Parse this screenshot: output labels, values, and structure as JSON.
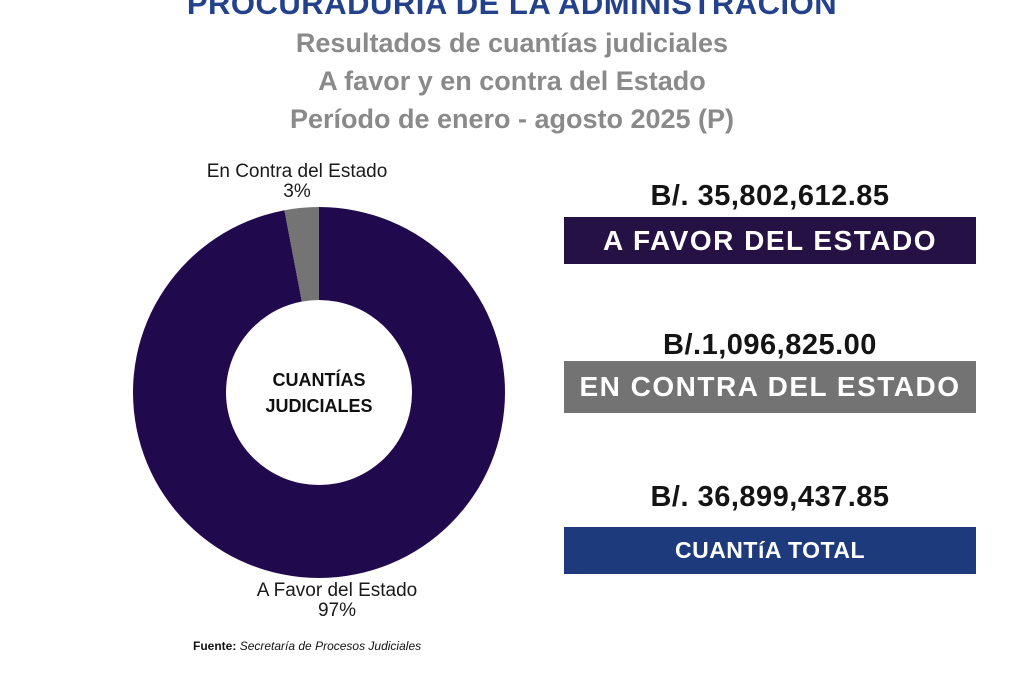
{
  "header": {
    "title": "PROCURADURÍA DE LA ADMINISTRACIÓN",
    "subtitle_lines": [
      "Resultados de cuantías judiciales",
      "A favor y en contra del Estado",
      "Período de enero - agosto 2025 (P)"
    ]
  },
  "chart_data": {
    "type": "pie",
    "subtype": "donut",
    "categories": [
      "A Favor del Estado",
      "En Contra del Estado"
    ],
    "values": [
      97,
      3
    ],
    "unit": "%",
    "amounts": [
      "B/. 35,802,612.85",
      "B/.1,096,825.00"
    ],
    "total_amount": "B/. 36,899,437.85",
    "colors": [
      "#21094E",
      "#747474"
    ],
    "start_angle_deg": 0,
    "direction": "clockwise",
    "legend_position": "none",
    "center_label_lines": [
      "CUANTÍAS",
      "JUDICIALES"
    ],
    "labels": {
      "contra": {
        "name": "En Contra del Estado",
        "pct": "3%"
      },
      "favor": {
        "name": "A Favor del Estado",
        "pct": "97%"
      }
    }
  },
  "summary": {
    "items": [
      {
        "amount": "B/. 35,802,612.85",
        "label": "A FAVOR DEL ESTADO",
        "bg": "#261144"
      },
      {
        "amount": "B/.1,096,825.00",
        "label": "EN CONTRA DEL ESTADO",
        "bg": "#737373"
      },
      {
        "amount": "B/. 36,899,437.85",
        "label": "CUANTíA TOTAL",
        "bg": "#1D3A7D"
      }
    ]
  },
  "footer": {
    "source_label": "Fuente:",
    "source_text": "Secretaría de Procesos Judiciales"
  },
  "colors": {
    "title_navy": "#24418C",
    "subtitle_gray": "#8A8A8A"
  }
}
